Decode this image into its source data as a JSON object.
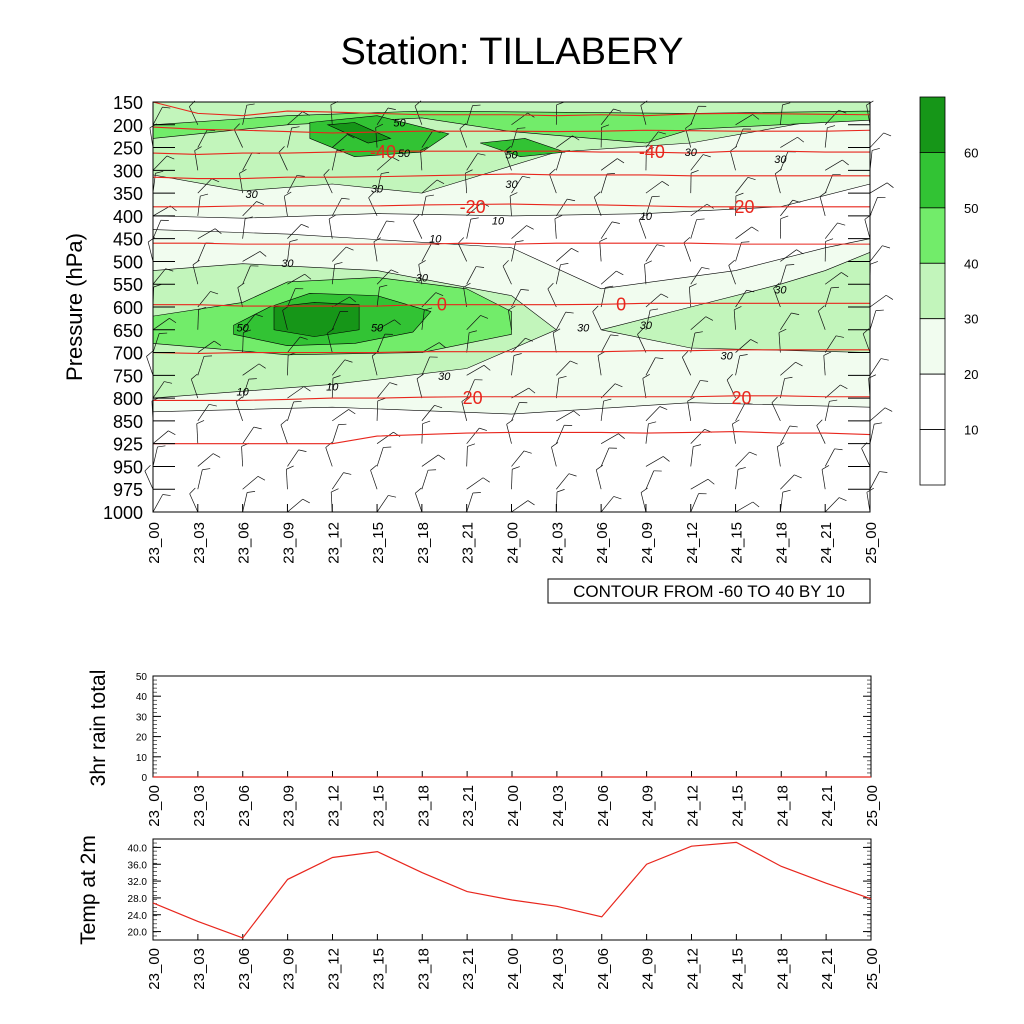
{
  "title": "Station: TILLABERY",
  "colors": {
    "line": "#e8261d",
    "axis": "#000000",
    "band1": "#f1fcef",
    "band2": "#c2f5bb",
    "band3": "#72ec6a",
    "band4": "#32c334",
    "band5": "#169618"
  },
  "time_labels": [
    "23_00",
    "23_03",
    "23_06",
    "23_09",
    "23_12",
    "23_15",
    "23_18",
    "23_21",
    "24_00",
    "24_03",
    "24_06",
    "24_09",
    "24_12",
    "24_15",
    "24_18",
    "24_21",
    "25_00"
  ],
  "chart_data": [
    {
      "type": "heatmap",
      "id": "cross-section",
      "ylabel": "Pressure (hPa)",
      "xlabel": "",
      "pressure_levels": [
        150,
        200,
        250,
        300,
        350,
        400,
        450,
        500,
        550,
        600,
        650,
        700,
        750,
        800,
        850,
        925,
        950,
        975,
        1000
      ],
      "y_axis": "reversed (150 at top, 1000 at bottom)",
      "shaded_field": "relative humidity (%)",
      "colorbar": {
        "ticks": [
          10,
          20,
          30,
          40,
          50,
          60
        ],
        "band_values": [
          "<10",
          "10-20",
          "20-30",
          "30-40",
          "40-50",
          "50-60",
          ">60"
        ]
      },
      "contour_note": "CONTOUR FROM -60 TO 40 BY 10",
      "shaded_regions": [
        {
          "label": "30",
          "region": "upper-level moist layer 150-350 hPa"
        },
        {
          "label": "50",
          "region": "max near 200 hPa at 23_12-23_15"
        },
        {
          "label": "50",
          "region": "near 250 hPa at 23_21-24_00"
        },
        {
          "label": "50",
          "region": "mid-level core 550-700 hPa at 23_06-23_15"
        },
        {
          "label": "60",
          "region": "core near 620 hPa at 23_09-23_12"
        }
      ],
      "humidity_labels": [
        "50",
        "50",
        "50",
        "50",
        "50",
        "30",
        "30",
        "30",
        "30",
        "30",
        "30",
        "30",
        "30",
        "30",
        "30",
        "30",
        "30",
        "10",
        "10",
        "10",
        "10",
        "10"
      ],
      "temperature_contours": [
        {
          "label": "-40",
          "pressure": 260,
          "positions": [
            "23_15",
            "24_09"
          ]
        },
        {
          "label": "-20",
          "pressure": 380,
          "positions": [
            "23_21",
            "24_15"
          ]
        },
        {
          "label": "0",
          "pressure": 595,
          "positions": [
            "23_18",
            "24_06"
          ]
        },
        {
          "label": "20",
          "pressure": 800,
          "positions": [
            "23_21",
            "24_15"
          ]
        }
      ]
    },
    {
      "type": "line",
      "id": "rain",
      "ylabel": "3hr rain total",
      "ylim": [
        0,
        50
      ],
      "yticks": [
        "0",
        "10",
        "20",
        "30",
        "40",
        "50"
      ],
      "x": [
        "23_00",
        "23_03",
        "23_06",
        "23_09",
        "23_12",
        "23_15",
        "23_18",
        "23_21",
        "24_00",
        "24_03",
        "24_06",
        "24_09",
        "24_12",
        "24_15",
        "24_18",
        "24_21",
        "25_00"
      ],
      "values": [
        0,
        0,
        0,
        0,
        0,
        0,
        0,
        0,
        0,
        0,
        0,
        0,
        0,
        0,
        0,
        0,
        0
      ]
    },
    {
      "type": "line",
      "id": "temp",
      "ylabel": "Temp at 2m",
      "ylim": [
        18.0,
        42.0
      ],
      "yticks": [
        "20.0",
        "24.0",
        "28.0",
        "32.0",
        "36.0",
        "40.0"
      ],
      "x": [
        "23_00",
        "23_03",
        "23_06",
        "23_09",
        "23_12",
        "23_15",
        "23_18",
        "23_21",
        "24_00",
        "24_03",
        "24_06",
        "24_09",
        "24_12",
        "24_15",
        "24_18",
        "24_21",
        "25_00"
      ],
      "values": [
        26.8,
        22.4,
        18.5,
        32.4,
        37.6,
        39.0,
        34.0,
        29.5,
        27.5,
        26.0,
        23.5,
        36.0,
        40.3,
        41.2,
        35.5,
        31.5,
        27.8
      ]
    }
  ]
}
